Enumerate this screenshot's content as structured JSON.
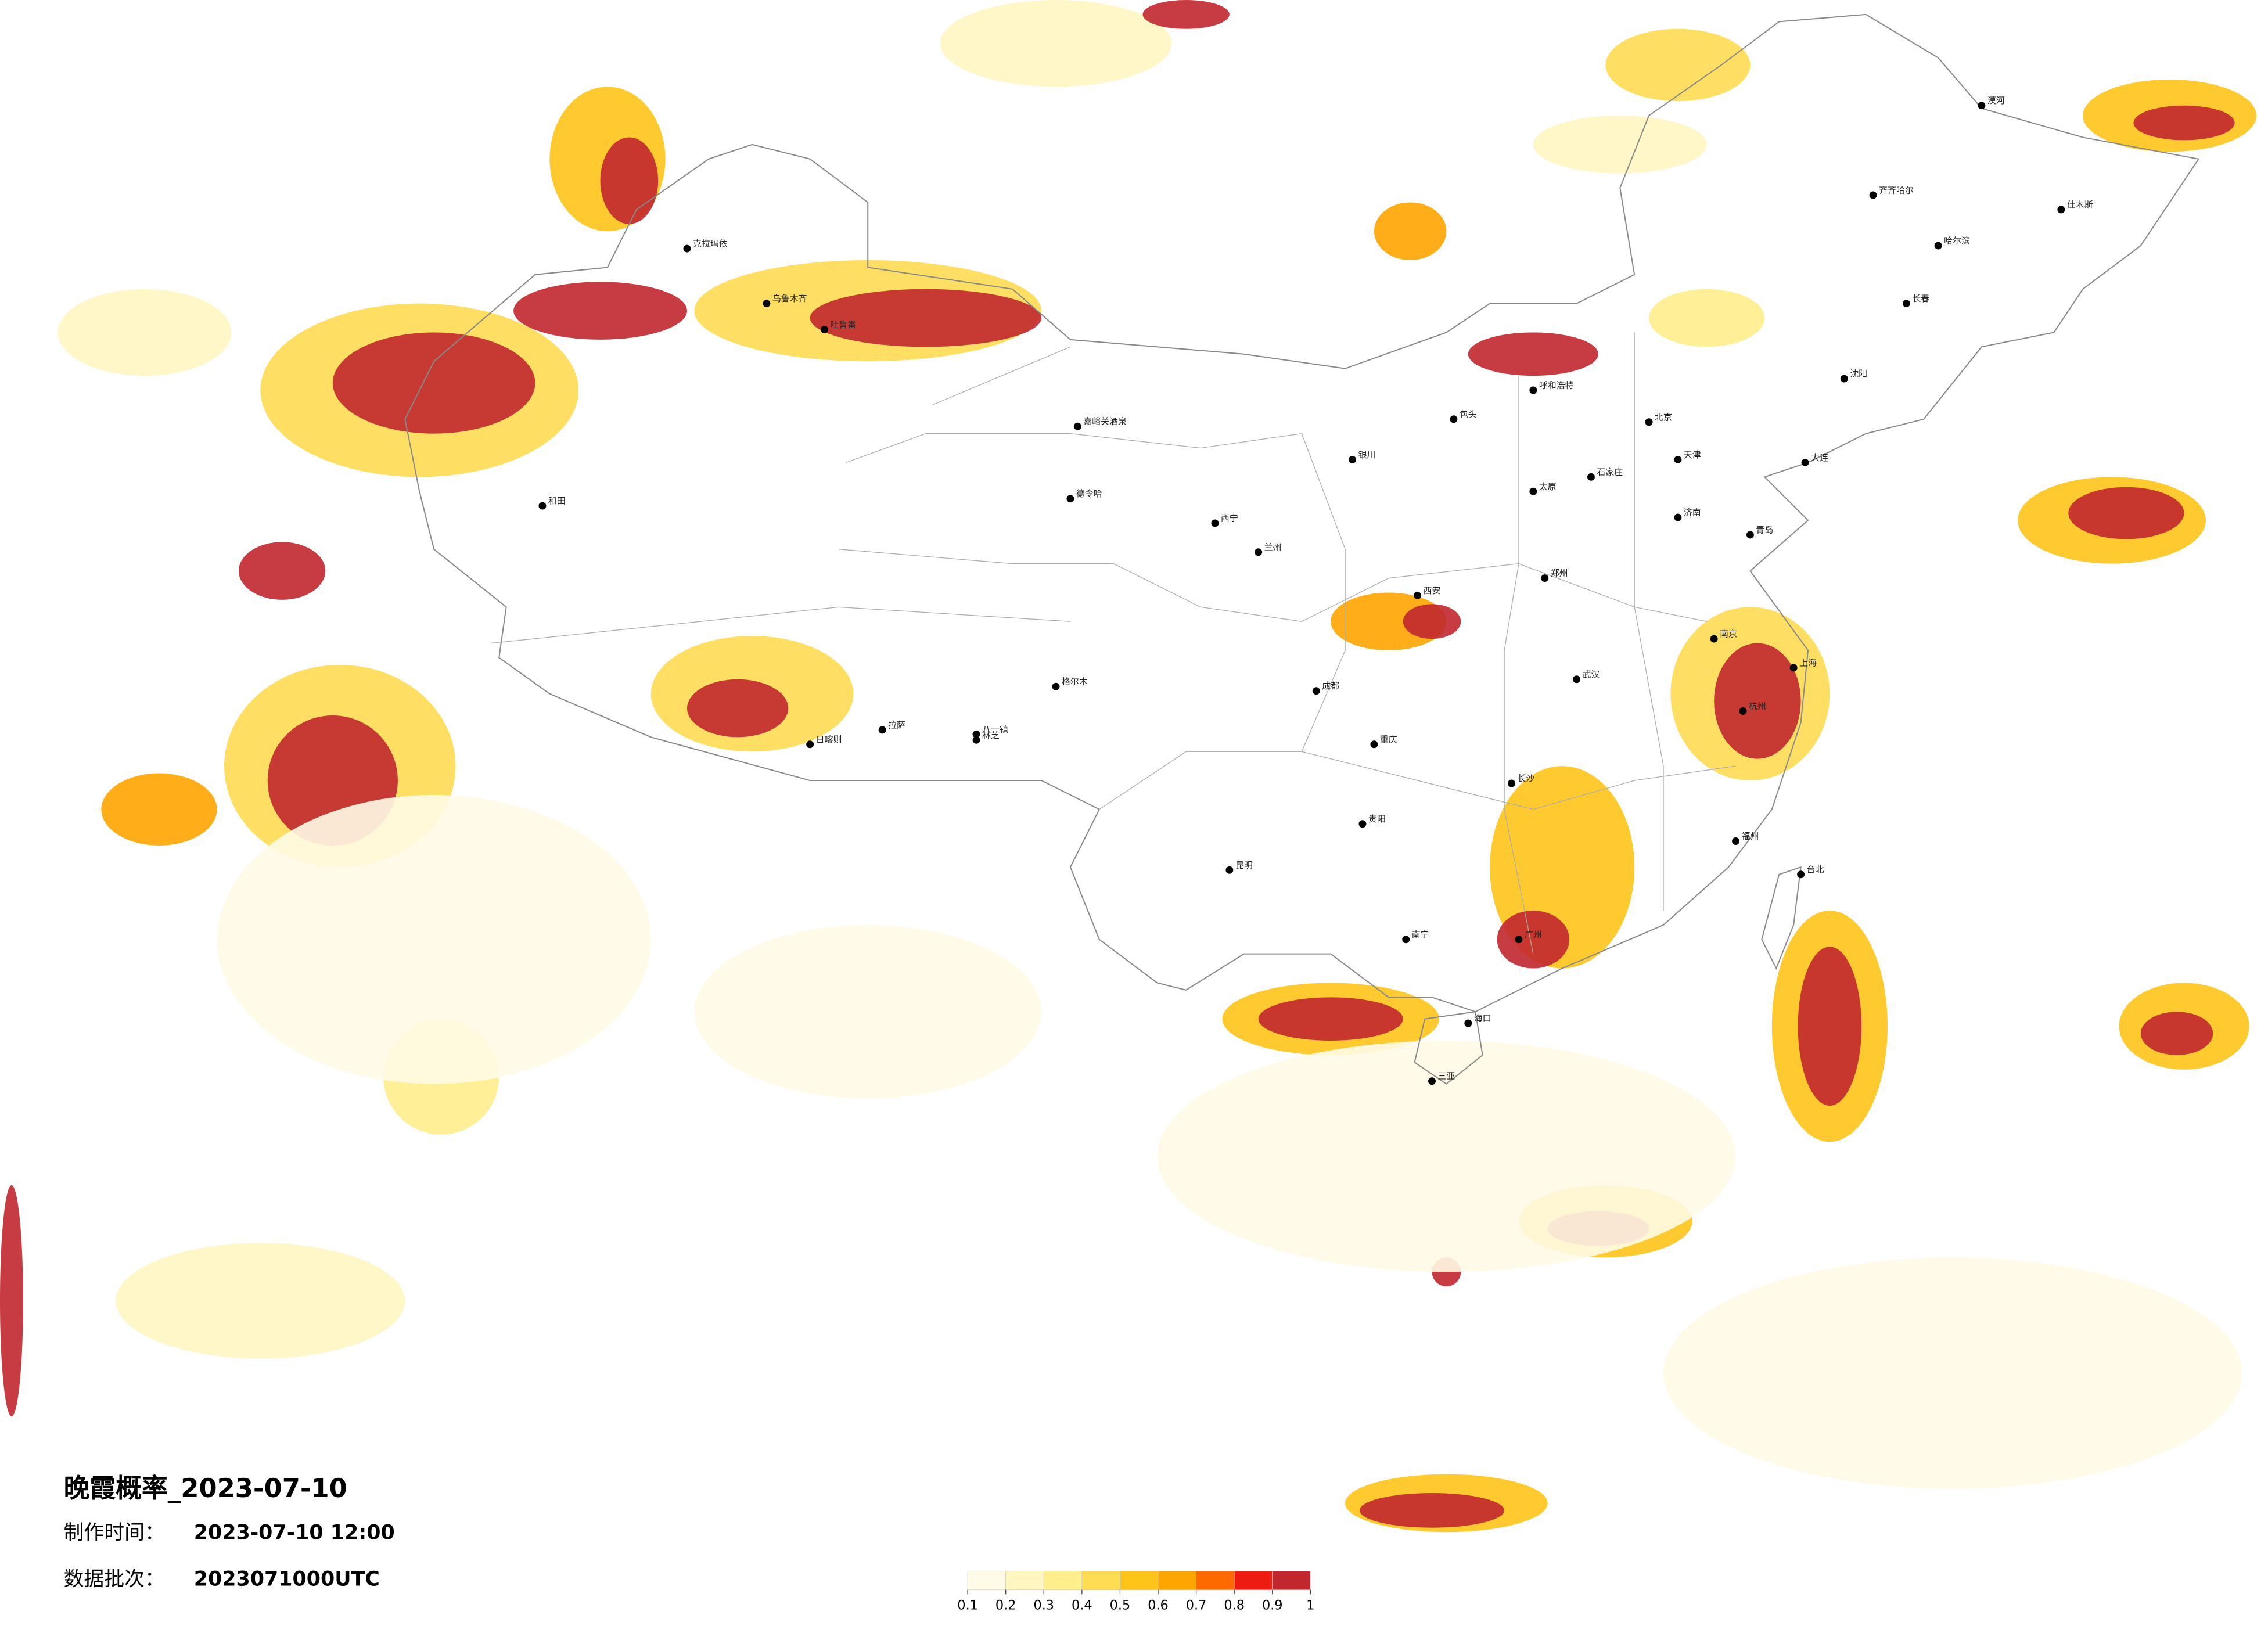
{
  "header": {
    "title": "晚霞概率_2023-07-10",
    "made_label": "制作时间：",
    "made_time": "2023-07-10 12:00",
    "batch_label": "数据批次：",
    "batch": "2023071000UTC"
  },
  "colorbar": {
    "ticks": [
      0.1,
      0.2,
      0.3,
      0.4,
      0.5,
      0.6,
      0.7,
      0.8,
      0.9,
      1
    ],
    "colors": [
      "#fffbe6",
      "#fff6c2",
      "#ffee8c",
      "#ffdc52",
      "#ffc41a",
      "#ffa500",
      "#ff6a00",
      "#ee1c10",
      "#c1272d"
    ]
  },
  "cities": [
    "克拉玛依",
    "乌鲁木齐",
    "吐鲁番",
    "和田",
    "嘉峪关酒泉",
    "德令哈",
    "格尔木",
    "西宁",
    "兰州",
    "银川",
    "呼和浩特",
    "包头",
    "太原",
    "石家庄",
    "北京",
    "天津",
    "济南",
    "郑州",
    "西安",
    "成都",
    "重庆",
    "拉萨",
    "日喀则",
    "八一镇",
    "林芝",
    "昆明",
    "贵阳",
    "南宁",
    "广州",
    "海口",
    "三亚",
    "长沙",
    "武汉",
    "南京",
    "上海",
    "杭州",
    "福州",
    "台北",
    "沈阳",
    "长春",
    "哈尔滨",
    "齐齐哈尔",
    "漠河",
    "佳木斯",
    "大连",
    "青岛"
  ]
}
